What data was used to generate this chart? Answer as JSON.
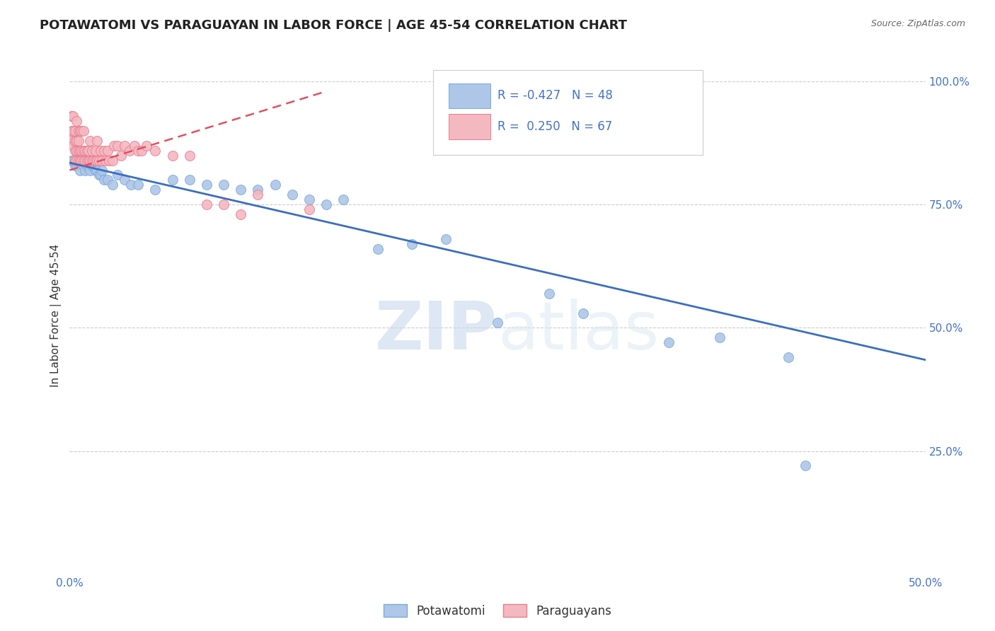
{
  "title": "POTAWATOMI VS PARAGUAYAN IN LABOR FORCE | AGE 45-54 CORRELATION CHART",
  "source": "Source: ZipAtlas.com",
  "ylabel": "In Labor Force | Age 45-54",
  "watermark_zip": "ZIP",
  "watermark_atlas": "atlas",
  "xlim": [
    0.0,
    0.5
  ],
  "ylim": [
    0.0,
    1.05
  ],
  "yticks_right": [
    0.25,
    0.5,
    0.75,
    1.0
  ],
  "ytick_labels_right": [
    "25.0%",
    "50.0%",
    "75.0%",
    "100.0%"
  ],
  "grid_color": "#cccccc",
  "background_color": "#ffffff",
  "potawatomi_color": "#aec6e8",
  "potawatomi_edge_color": "#7aabda",
  "paraguayan_color": "#f4b8c1",
  "paraguayan_edge_color": "#e87d8f",
  "potawatomi_R": -0.427,
  "potawatomi_N": 48,
  "paraguayan_R": 0.25,
  "paraguayan_N": 67,
  "legend_label_potawatomi": "Potawatomi",
  "legend_label_paraguayan": "Paraguayans",
  "potawatomi_line_color": "#3b6fbf",
  "paraguayan_line_color": "#e05060",
  "pot_line_x0": 0.0,
  "pot_line_y0": 0.835,
  "pot_line_x1": 0.5,
  "pot_line_y1": 0.435,
  "par_line_x0": 0.0,
  "par_line_y0": 0.82,
  "par_line_x1": 0.15,
  "par_line_y1": 0.98,
  "par_line_dash": true,
  "title_fontsize": 13,
  "source_fontsize": 9,
  "marker_size": 100,
  "potawatomi_x": [
    0.001,
    0.002,
    0.003,
    0.004,
    0.005,
    0.006,
    0.007,
    0.008,
    0.009,
    0.01,
    0.011,
    0.012,
    0.013,
    0.014,
    0.015,
    0.016,
    0.017,
    0.018,
    0.019,
    0.02,
    0.022,
    0.025,
    0.028,
    0.032,
    0.036,
    0.04,
    0.05,
    0.06,
    0.07,
    0.08,
    0.09,
    0.1,
    0.11,
    0.12,
    0.13,
    0.14,
    0.15,
    0.16,
    0.18,
    0.2,
    0.22,
    0.25,
    0.28,
    0.3,
    0.35,
    0.38,
    0.42,
    0.43
  ],
  "potawatomi_y": [
    0.84,
    0.84,
    0.83,
    0.83,
    0.84,
    0.82,
    0.84,
    0.83,
    0.82,
    0.83,
    0.83,
    0.82,
    0.83,
    0.83,
    0.82,
    0.82,
    0.81,
    0.81,
    0.82,
    0.8,
    0.8,
    0.79,
    0.81,
    0.8,
    0.79,
    0.79,
    0.78,
    0.8,
    0.8,
    0.79,
    0.79,
    0.78,
    0.78,
    0.79,
    0.77,
    0.76,
    0.75,
    0.76,
    0.66,
    0.67,
    0.68,
    0.51,
    0.57,
    0.53,
    0.47,
    0.48,
    0.44,
    0.22
  ],
  "paraguayan_x": [
    0.001,
    0.001,
    0.001,
    0.002,
    0.002,
    0.002,
    0.003,
    0.003,
    0.003,
    0.003,
    0.004,
    0.004,
    0.004,
    0.004,
    0.005,
    0.005,
    0.005,
    0.005,
    0.006,
    0.006,
    0.006,
    0.007,
    0.007,
    0.007,
    0.008,
    0.008,
    0.008,
    0.009,
    0.009,
    0.01,
    0.01,
    0.011,
    0.011,
    0.012,
    0.012,
    0.013,
    0.013,
    0.014,
    0.015,
    0.015,
    0.016,
    0.016,
    0.017,
    0.018,
    0.019,
    0.02,
    0.021,
    0.022,
    0.023,
    0.025,
    0.026,
    0.028,
    0.03,
    0.032,
    0.035,
    0.038,
    0.04,
    0.042,
    0.045,
    0.05,
    0.06,
    0.07,
    0.08,
    0.09,
    0.1,
    0.11,
    0.14
  ],
  "paraguayan_y": [
    0.88,
    0.9,
    0.93,
    0.87,
    0.9,
    0.93,
    0.84,
    0.86,
    0.88,
    0.9,
    0.84,
    0.86,
    0.88,
    0.92,
    0.84,
    0.86,
    0.88,
    0.9,
    0.84,
    0.86,
    0.9,
    0.84,
    0.86,
    0.9,
    0.84,
    0.86,
    0.9,
    0.84,
    0.86,
    0.84,
    0.86,
    0.84,
    0.86,
    0.84,
    0.88,
    0.84,
    0.86,
    0.84,
    0.84,
    0.86,
    0.84,
    0.88,
    0.84,
    0.86,
    0.84,
    0.86,
    0.84,
    0.86,
    0.84,
    0.84,
    0.87,
    0.87,
    0.85,
    0.87,
    0.86,
    0.87,
    0.86,
    0.86,
    0.87,
    0.86,
    0.85,
    0.85,
    0.75,
    0.75,
    0.73,
    0.77,
    0.74
  ]
}
